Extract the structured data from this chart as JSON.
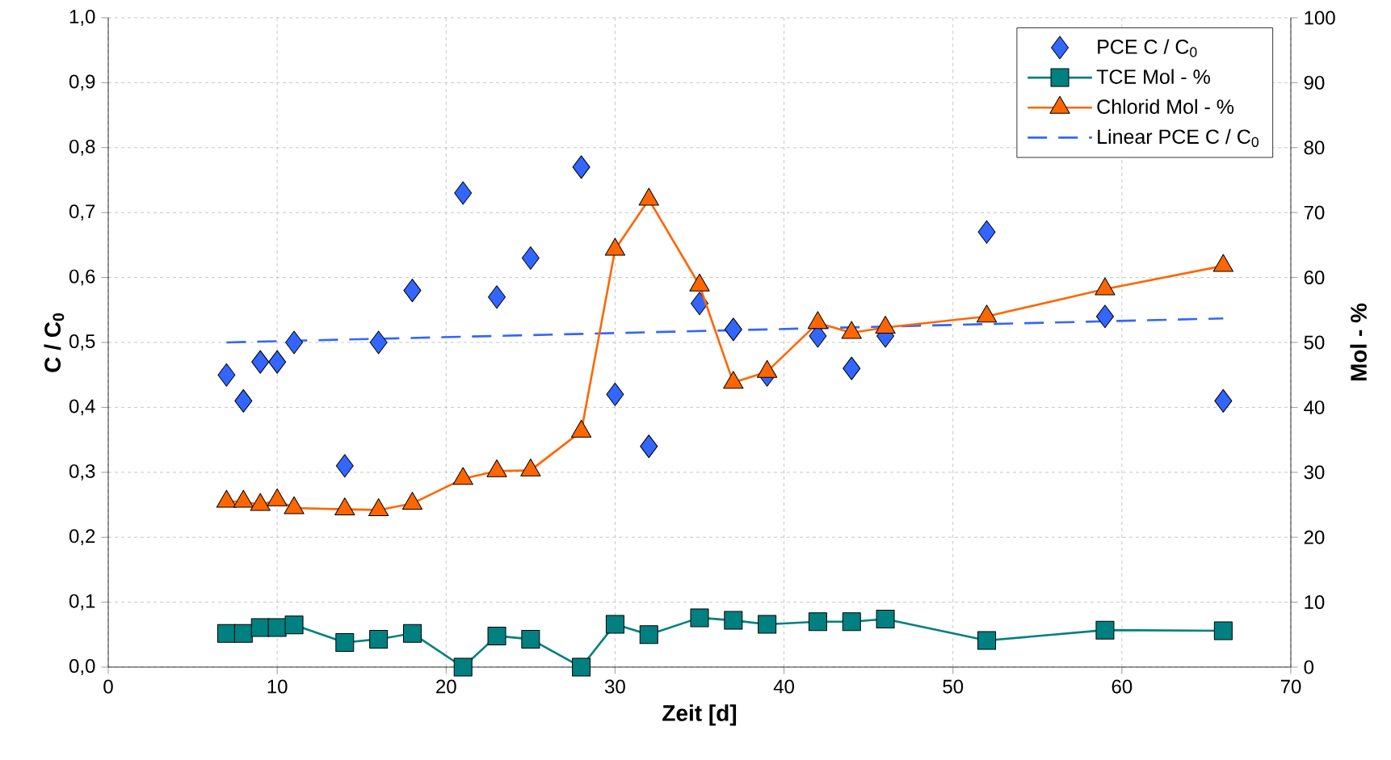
{
  "chart_data": {
    "type": "scatter",
    "xlabel": "Zeit [d]",
    "ylabel": "C / C$_{0}$",
    "y2label": "Mol - %",
    "x": [
      7,
      8,
      9,
      10,
      11,
      14,
      16,
      18,
      21,
      23,
      25,
      28,
      30,
      32,
      35,
      37,
      39,
      42,
      44,
      46,
      52,
      59,
      66
    ],
    "xlim": [
      0,
      70
    ],
    "xticks": [
      0,
      10,
      20,
      30,
      40,
      50,
      60,
      70
    ],
    "ylim": [
      0,
      1
    ],
    "yticks": [
      {
        "value": 0,
        "label": "0,0"
      },
      {
        "value": 0.1,
        "label": "0,1"
      },
      {
        "value": 0.2,
        "label": "0,2"
      },
      {
        "value": 0.3,
        "label": "0,3"
      },
      {
        "value": 0.4,
        "label": "0,4"
      },
      {
        "value": 0.5,
        "label": "0,5"
      },
      {
        "value": 0.6,
        "label": "0,6"
      },
      {
        "value": 0.7,
        "label": "0,7"
      },
      {
        "value": 0.8,
        "label": "0,8"
      },
      {
        "value": 0.9,
        "label": "0,9"
      },
      {
        "value": 1,
        "label": "1,0"
      }
    ],
    "y2lim": [
      0,
      100
    ],
    "y2ticks": [
      0,
      10,
      20,
      30,
      40,
      50,
      60,
      70,
      80,
      90,
      100
    ],
    "grid": true,
    "legend": "top right",
    "series": [
      {
        "name": "PCE C / C$_{0}$",
        "marker": "diamond",
        "color": "#3366ff",
        "values": [
          0.45,
          0.41,
          0.47,
          0.47,
          0.5,
          0.31,
          0.5,
          0.58,
          0.73,
          0.57,
          0.63,
          0.77,
          0.42,
          0.34,
          0.56,
          0.52,
          0.45,
          0.51,
          0.46,
          0.51,
          0.67,
          0.54,
          0.41
        ]
      },
      {
        "name": "TCE Mol - %",
        "type": "line",
        "marker": "square",
        "axis": "y2",
        "color": "#008080",
        "values": [
          5.2,
          5.2,
          6.1,
          6.1,
          6.5,
          3.8,
          4.3,
          5.2,
          0,
          4.8,
          4.3,
          0,
          6.6,
          5,
          7.6,
          7.2,
          6.6,
          7,
          7,
          7.4,
          4.1,
          5.7,
          5.6
        ]
      },
      {
        "name": "Chlorid Mol - %",
        "type": "line",
        "marker": "triangle",
        "axis": "y2",
        "color": "#ff6600",
        "values": [
          25.5,
          25.5,
          25,
          25.7,
          24.5,
          24.3,
          24.2,
          25.2,
          29,
          30.2,
          30.3,
          36.3,
          64.3,
          72,
          58.8,
          43.8,
          45.5,
          53,
          51.5,
          52.3,
          54,
          58.2,
          61.8
        ]
      },
      {
        "name": "Linear PCE C / C$_{0}$",
        "type": "line",
        "marker": "none",
        "line_style": "dashed",
        "color": "#3366ff",
        "x": [
          7,
          66
        ],
        "values": [
          0.5,
          0.537
        ]
      }
    ]
  }
}
